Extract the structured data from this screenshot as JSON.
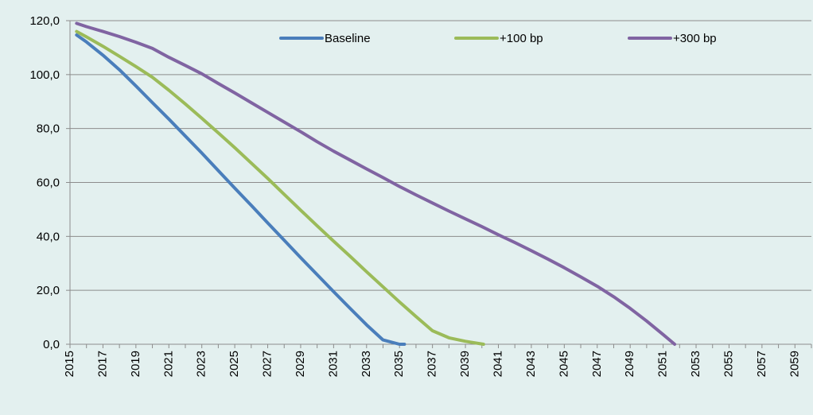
{
  "chart_data": {
    "type": "line",
    "title": "",
    "xlabel": "",
    "ylabel": "",
    "ylim": [
      0,
      120
    ],
    "xlim": [
      2015,
      2060
    ],
    "y_ticks": [
      0,
      20,
      40,
      60,
      80,
      100,
      120
    ],
    "y_tick_labels": [
      "0,0",
      "20,0",
      "40,0",
      "60,0",
      "80,0",
      "100,0",
      "120,0"
    ],
    "x_ticks": [
      2015,
      2017,
      2019,
      2021,
      2023,
      2025,
      2027,
      2029,
      2031,
      2033,
      2035,
      2037,
      2039,
      2041,
      2043,
      2045,
      2047,
      2049,
      2051,
      2053,
      2055,
      2057,
      2059
    ],
    "grid": "horizontal",
    "legend_position": "top",
    "background_color": "#e3f0ef",
    "series": [
      {
        "name": "Baseline",
        "color": "#4a7ebb",
        "x": [
          2015.4,
          2016,
          2017,
          2018,
          2019,
          2020,
          2021,
          2022,
          2023,
          2024,
          2025,
          2026,
          2027,
          2028,
          2029,
          2030,
          2031,
          2032,
          2033,
          2034,
          2035,
          2035.3
        ],
        "y": [
          114.7,
          112.1,
          107.2,
          101.8,
          95.8,
          89.6,
          83.5,
          77.2,
          70.9,
          64.4,
          57.9,
          51.5,
          45.0,
          38.6,
          32.1,
          25.8,
          19.5,
          13.3,
          7.2,
          1.6,
          -0.6,
          0
        ]
      },
      {
        "name": "+100 bp",
        "color": "#9bbb59",
        "x": [
          2015.4,
          2016,
          2017,
          2018,
          2019,
          2020,
          2021,
          2022,
          2023,
          2024,
          2025,
          2026,
          2027,
          2028,
          2029,
          2030,
          2031,
          2032,
          2033,
          2034,
          2035,
          2036,
          2037,
          2038,
          2039,
          2040.1
        ],
        "y": [
          116.0,
          114.0,
          110.5,
          106.8,
          103.0,
          99.0,
          94.2,
          89.1,
          83.8,
          78.4,
          72.9,
          67.2,
          61.5,
          55.6,
          49.7,
          43.9,
          38.2,
          32.6,
          26.9,
          21.3,
          15.7,
          10.3,
          5.0,
          2.4,
          1.1,
          0
        ]
      },
      {
        "name": "+300 bp",
        "color": "#8064a2",
        "x": [
          2015.4,
          2016,
          2017,
          2018,
          2019,
          2020,
          2021,
          2022,
          2023,
          2024,
          2025,
          2026,
          2027,
          2028,
          2029,
          2030,
          2031,
          2032,
          2033,
          2034,
          2035,
          2036,
          2037,
          2038,
          2039,
          2040,
          2041,
          2042,
          2043,
          2044,
          2045,
          2046,
          2047,
          2048,
          2049,
          2050,
          2051,
          2051.7
        ],
        "y": [
          119.0,
          117.8,
          116.0,
          114.1,
          112.0,
          109.7,
          106.4,
          103.4,
          100.3,
          96.7,
          93.2,
          89.6,
          86.0,
          82.4,
          78.8,
          75.1,
          71.6,
          68.3,
          65.0,
          61.8,
          58.5,
          55.4,
          52.4,
          49.4,
          46.5,
          43.6,
          40.6,
          37.7,
          34.7,
          31.6,
          28.4,
          25.0,
          21.5,
          17.6,
          13.3,
          8.6,
          3.6,
          0
        ]
      }
    ]
  }
}
